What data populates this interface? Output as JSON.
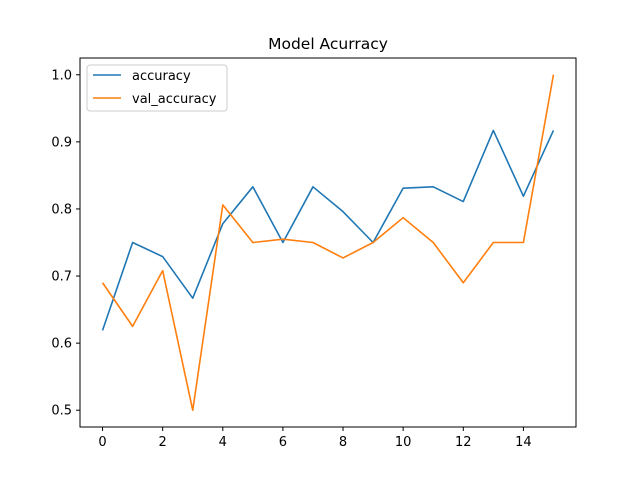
{
  "chart_data": {
    "type": "line",
    "title": "Model Acurracy",
    "xlabel": "",
    "ylabel": "",
    "x": [
      0,
      1,
      2,
      3,
      4,
      5,
      6,
      7,
      8,
      9,
      10,
      11,
      12,
      13,
      14,
      15
    ],
    "series": [
      {
        "name": "accuracy",
        "color": "#1f77b4",
        "values": [
          0.619,
          0.75,
          0.729,
          0.667,
          0.778,
          0.833,
          0.75,
          0.833,
          0.796,
          0.75,
          0.831,
          0.833,
          0.811,
          0.917,
          0.819,
          0.917
        ]
      },
      {
        "name": "val_accuracy",
        "color": "#ff7f0e",
        "values": [
          0.69,
          0.625,
          0.708,
          0.5,
          0.806,
          0.75,
          0.755,
          0.75,
          0.727,
          0.75,
          0.787,
          0.75,
          0.69,
          0.75,
          0.75,
          1.0
        ]
      }
    ],
    "xlim": [
      -0.75,
      15.75
    ],
    "ylim": [
      0.475,
      1.025
    ],
    "xticks": [
      0,
      2,
      4,
      6,
      8,
      10,
      12,
      14
    ],
    "xtick_labels": [
      "0",
      "2",
      "4",
      "6",
      "8",
      "10",
      "12",
      "14"
    ],
    "yticks": [
      0.5,
      0.6,
      0.7,
      0.8,
      0.9,
      1.0
    ],
    "ytick_labels": [
      "0.5",
      "0.6",
      "0.7",
      "0.8",
      "0.9",
      "1.0"
    ],
    "grid": false,
    "legend_position": "top-left"
  }
}
